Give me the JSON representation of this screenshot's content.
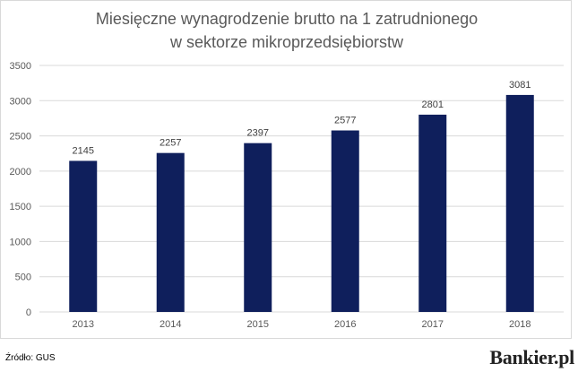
{
  "chart_data": {
    "type": "bar",
    "title_lines": [
      "Miesięczne wynagrodzenie brutto na 1 zatrudnionego",
      "w sektorze mikroprzedsiębiorstw"
    ],
    "categories": [
      "2013",
      "2014",
      "2015",
      "2016",
      "2017",
      "2018"
    ],
    "values": [
      2145,
      2257,
      2397,
      2577,
      2801,
      3081
    ],
    "data_labels": [
      "2145",
      "2257",
      "2397",
      "2577",
      "2801",
      "3081"
    ],
    "y_ticks": [
      "0",
      "500",
      "1000",
      "1500",
      "2000",
      "2500",
      "3000",
      "3500"
    ],
    "ylim": [
      0,
      3500
    ],
    "grid": true,
    "legend": "none",
    "bar_color": "#0f1f5c",
    "grid_color": "#d9d9d9"
  },
  "footer": {
    "source": "Źródło: GUS",
    "brand": "Bankier.pl"
  }
}
